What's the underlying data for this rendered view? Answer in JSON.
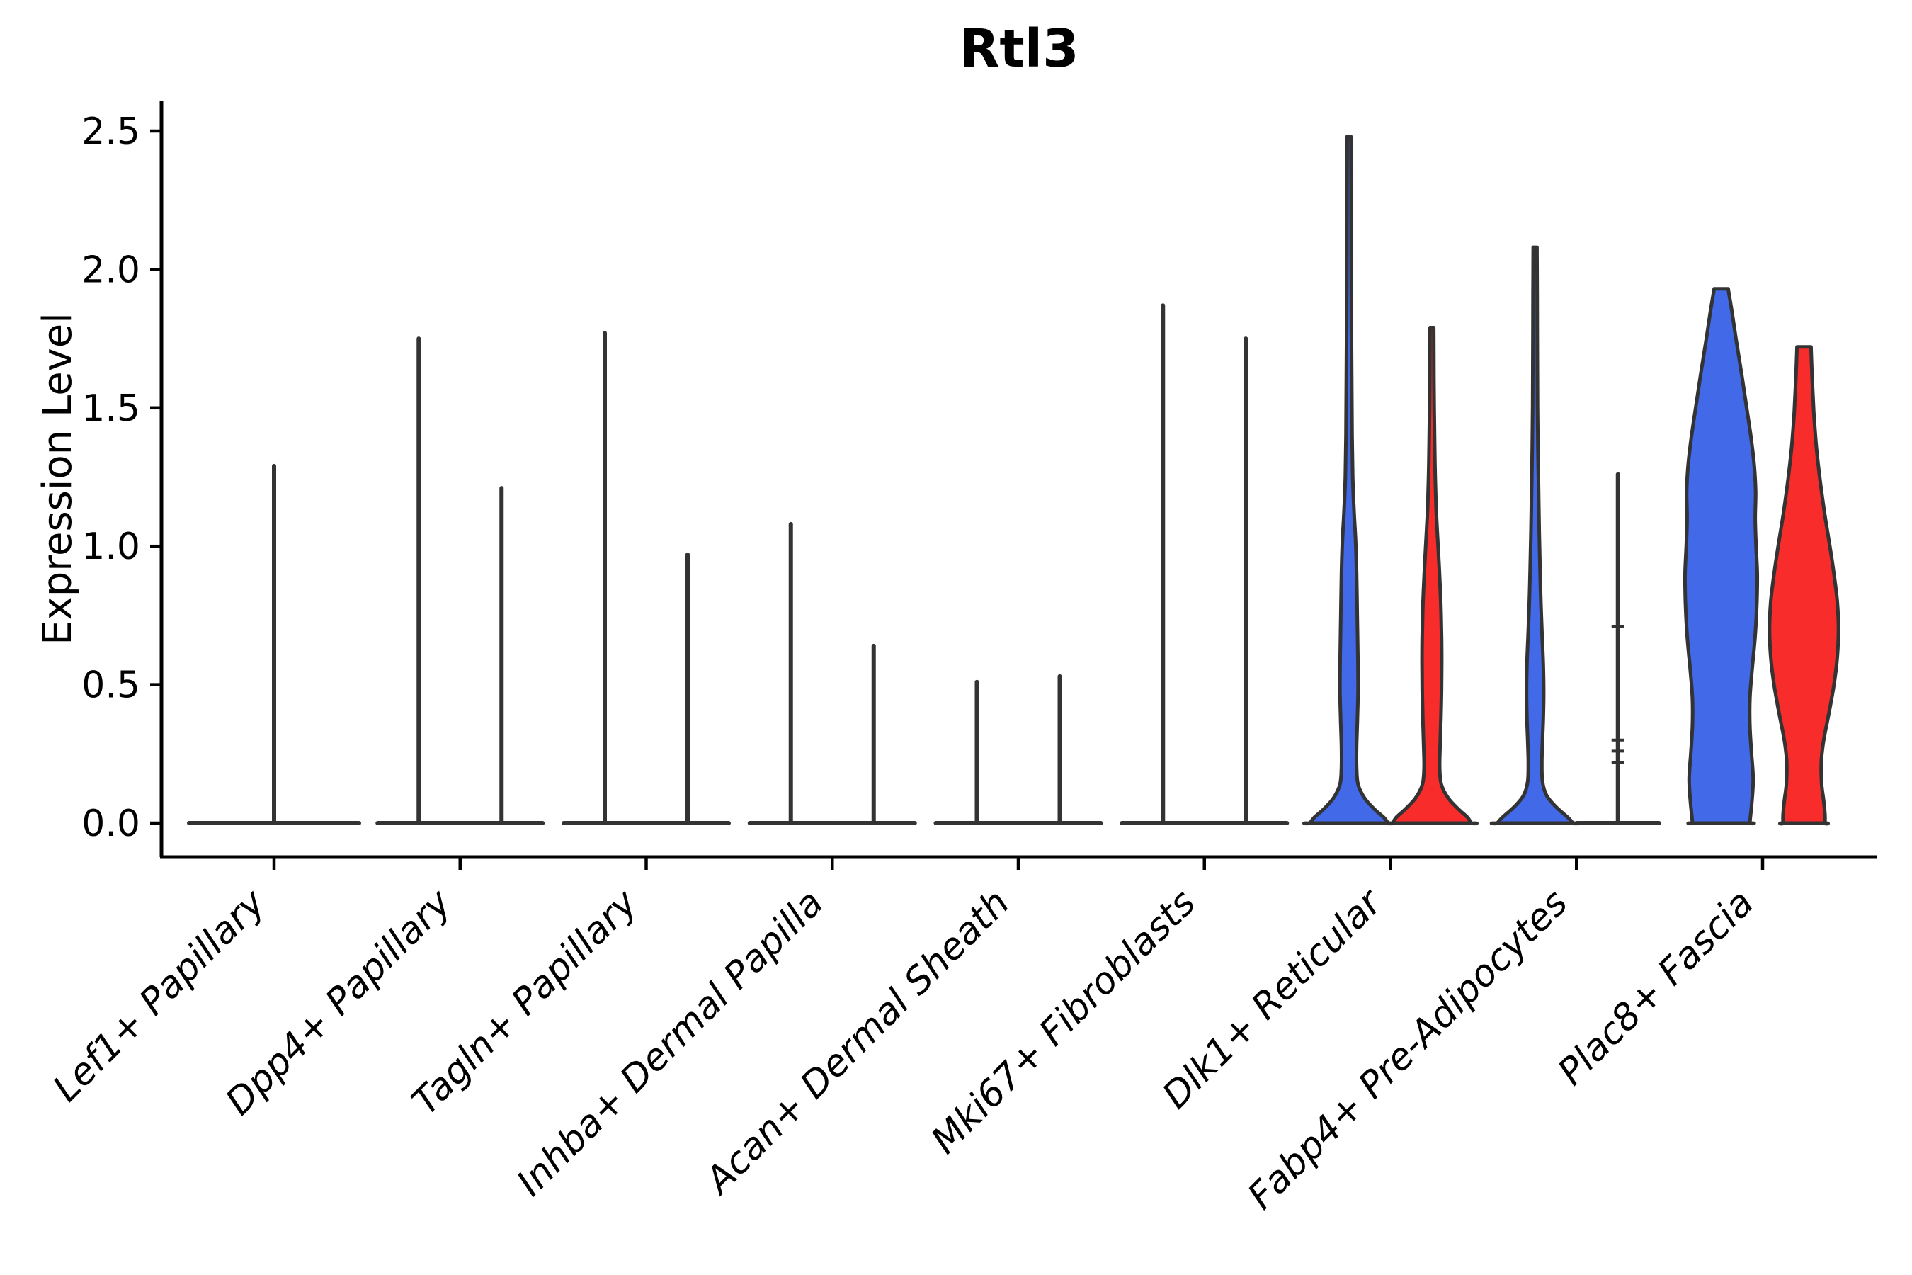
{
  "chart_data": {
    "type": "violin",
    "title": "Rtl3",
    "ylabel": "Expression Level",
    "xlabel": "",
    "legend": "none",
    "grid": false,
    "background": "#ffffff",
    "ylim": [
      -0.12,
      2.61
    ],
    "ytick_labels": [
      "0.0",
      "0.5",
      "1.0",
      "1.5",
      "2.0",
      "2.5"
    ],
    "ytick_values": [
      0.0,
      0.5,
      1.0,
      1.5,
      2.0,
      2.5
    ],
    "categories": [
      "Lef1+ Papillary",
      "Dpp4+ Papillary",
      "Tagln+ Papillary",
      "Inhba+ Dermal Papilla",
      "Acan+ Dermal Sheath",
      "Mki67+ Fibroblasts",
      "Dlk1+ Reticular",
      "Fabp4+ Pre-Adipocytes",
      "Plac8+ Fascia"
    ],
    "groups_note": "two violins per category: left = blue group, right = red group; sparse categories collapse to a flat base line with a vertical spike at the max expression value; Lef1+ Papillary shows a single centered full-width violin",
    "colors": {
      "blue": "#4169E8",
      "red": "#F92C2C",
      "outline": "#333333",
      "axis": "#000000"
    },
    "violins": [
      {
        "category_index": 0,
        "group": "single",
        "kind": "spike",
        "max": 1.29
      },
      {
        "category_index": 1,
        "group": "blue",
        "kind": "spike",
        "max": 1.75
      },
      {
        "category_index": 1,
        "group": "red",
        "kind": "spike",
        "max": 1.21
      },
      {
        "category_index": 2,
        "group": "blue",
        "kind": "spike",
        "max": 1.77
      },
      {
        "category_index": 2,
        "group": "red",
        "kind": "spike",
        "max": 0.97
      },
      {
        "category_index": 3,
        "group": "blue",
        "kind": "spike",
        "max": 1.08
      },
      {
        "category_index": 3,
        "group": "red",
        "kind": "spike",
        "max": 0.64
      },
      {
        "category_index": 4,
        "group": "blue",
        "kind": "spike",
        "max": 0.51
      },
      {
        "category_index": 4,
        "group": "red",
        "kind": "spike",
        "max": 0.53
      },
      {
        "category_index": 5,
        "group": "blue",
        "kind": "spike",
        "max": 1.87
      },
      {
        "category_index": 5,
        "group": "red",
        "kind": "spike",
        "max": 1.75
      },
      {
        "category_index": 6,
        "group": "blue",
        "kind": "shape",
        "max": 2.48,
        "profile": [
          [
            2.48,
            0.045
          ],
          [
            2.2,
            0.05
          ],
          [
            1.9,
            0.055
          ],
          [
            1.6,
            0.065
          ],
          [
            1.4,
            0.075
          ],
          [
            1.25,
            0.09
          ],
          [
            1.13,
            0.12
          ],
          [
            1.02,
            0.16
          ],
          [
            0.9,
            0.185
          ],
          [
            0.75,
            0.2
          ],
          [
            0.6,
            0.215
          ],
          [
            0.48,
            0.22
          ],
          [
            0.38,
            0.205
          ],
          [
            0.28,
            0.185
          ],
          [
            0.2,
            0.185
          ],
          [
            0.14,
            0.22
          ],
          [
            0.09,
            0.38
          ],
          [
            0.05,
            0.62
          ],
          [
            0.02,
            0.85
          ],
          [
            0.0,
            0.95
          ]
        ]
      },
      {
        "category_index": 6,
        "group": "red",
        "kind": "shape",
        "max": 1.79,
        "profile": [
          [
            1.79,
            0.045
          ],
          [
            1.6,
            0.05
          ],
          [
            1.45,
            0.06
          ],
          [
            1.3,
            0.075
          ],
          [
            1.15,
            0.1
          ],
          [
            1.03,
            0.14
          ],
          [
            0.92,
            0.18
          ],
          [
            0.8,
            0.215
          ],
          [
            0.68,
            0.235
          ],
          [
            0.58,
            0.24
          ],
          [
            0.48,
            0.235
          ],
          [
            0.38,
            0.22
          ],
          [
            0.28,
            0.2
          ],
          [
            0.2,
            0.19
          ],
          [
            0.14,
            0.23
          ],
          [
            0.09,
            0.4
          ],
          [
            0.05,
            0.65
          ],
          [
            0.02,
            0.87
          ],
          [
            0.0,
            0.95
          ]
        ]
      },
      {
        "category_index": 7,
        "group": "blue",
        "kind": "shape",
        "max": 2.08,
        "profile": [
          [
            2.08,
            0.045
          ],
          [
            1.9,
            0.05
          ],
          [
            1.7,
            0.055
          ],
          [
            1.5,
            0.06
          ],
          [
            1.35,
            0.07
          ],
          [
            1.2,
            0.085
          ],
          [
            1.05,
            0.1
          ],
          [
            0.92,
            0.12
          ],
          [
            0.8,
            0.14
          ],
          [
            0.68,
            0.17
          ],
          [
            0.57,
            0.2
          ],
          [
            0.47,
            0.21
          ],
          [
            0.38,
            0.2
          ],
          [
            0.3,
            0.18
          ],
          [
            0.22,
            0.165
          ],
          [
            0.15,
            0.18
          ],
          [
            0.1,
            0.28
          ],
          [
            0.06,
            0.5
          ],
          [
            0.02,
            0.8
          ],
          [
            0.0,
            0.92
          ]
        ]
      },
      {
        "category_index": 7,
        "group": "red",
        "kind": "spike",
        "max": 1.26,
        "marks": [
          0.71,
          0.3,
          0.26,
          0.22
        ]
      },
      {
        "category_index": 8,
        "group": "blue",
        "kind": "shape",
        "max": 1.93,
        "profile": [
          [
            1.93,
            0.17
          ],
          [
            1.85,
            0.26
          ],
          [
            1.75,
            0.36
          ],
          [
            1.62,
            0.5
          ],
          [
            1.5,
            0.62
          ],
          [
            1.4,
            0.72
          ],
          [
            1.3,
            0.8
          ],
          [
            1.2,
            0.84
          ],
          [
            1.1,
            0.83
          ],
          [
            1.0,
            0.85
          ],
          [
            0.9,
            0.88
          ],
          [
            0.8,
            0.87
          ],
          [
            0.68,
            0.83
          ],
          [
            0.55,
            0.75
          ],
          [
            0.45,
            0.7
          ],
          [
            0.35,
            0.7
          ],
          [
            0.25,
            0.74
          ],
          [
            0.16,
            0.78
          ],
          [
            0.08,
            0.75
          ],
          [
            0.02,
            0.71
          ],
          [
            0.0,
            0.7
          ]
        ]
      },
      {
        "category_index": 8,
        "group": "red",
        "kind": "shape",
        "max": 1.72,
        "profile": [
          [
            1.72,
            0.17
          ],
          [
            1.6,
            0.2
          ],
          [
            1.48,
            0.24
          ],
          [
            1.36,
            0.3
          ],
          [
            1.24,
            0.39
          ],
          [
            1.12,
            0.5
          ],
          [
            1.0,
            0.63
          ],
          [
            0.9,
            0.73
          ],
          [
            0.8,
            0.81
          ],
          [
            0.7,
            0.84
          ],
          [
            0.6,
            0.81
          ],
          [
            0.5,
            0.73
          ],
          [
            0.4,
            0.61
          ],
          [
            0.3,
            0.48
          ],
          [
            0.22,
            0.42
          ],
          [
            0.14,
            0.43
          ],
          [
            0.08,
            0.48
          ],
          [
            0.03,
            0.51
          ],
          [
            0.0,
            0.51
          ]
        ]
      }
    ]
  }
}
